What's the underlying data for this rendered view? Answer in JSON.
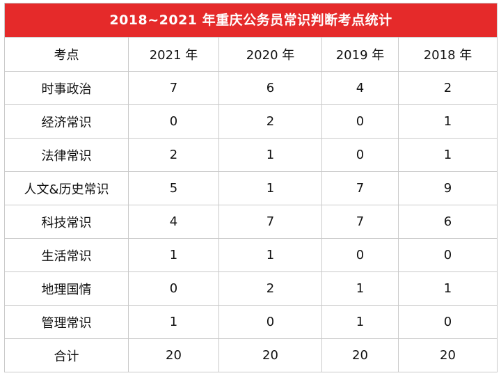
{
  "table": {
    "title": "2018~2021 年重庆公务员常识判断考点统计",
    "headers": [
      "考点",
      "2021 年",
      "2020 年",
      "2019 年",
      "2018 年"
    ],
    "rows": [
      [
        "时事政治",
        "7",
        "6",
        "4",
        "2"
      ],
      [
        "经济常识",
        "0",
        "2",
        "0",
        "1"
      ],
      [
        "法律常识",
        "2",
        "1",
        "0",
        "1"
      ],
      [
        "人文&历史常识",
        "5",
        "1",
        "7",
        "9"
      ],
      [
        "科技常识",
        "4",
        "7",
        "7",
        "6"
      ],
      [
        "生活常识",
        "1",
        "1",
        "0",
        "0"
      ],
      [
        "地理国情",
        "0",
        "2",
        "1",
        "1"
      ],
      [
        "管理常识",
        "1",
        "0",
        "1",
        "0"
      ],
      [
        "合计",
        "20",
        "20",
        "20",
        "20"
      ]
    ],
    "header_color": "#e52a2a"
  }
}
